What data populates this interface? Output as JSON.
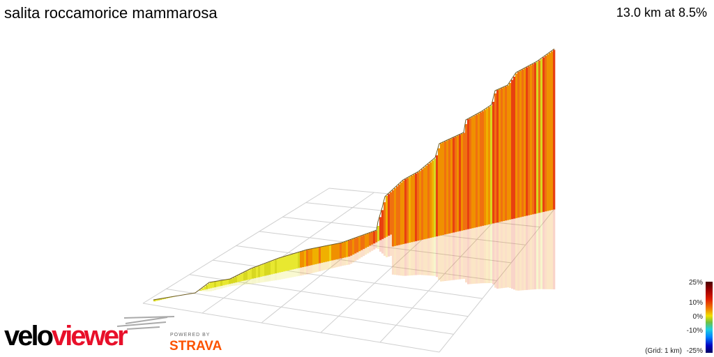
{
  "header": {
    "title": "salita roccamorice mammarosa",
    "summary": "13.0 km at 8.5%"
  },
  "chart_data": {
    "type": "3d-elevation-profile",
    "title": "salita roccamorice mammarosa",
    "distance_km": 13.0,
    "average_gradient_pct": 8.5,
    "grid": "on",
    "colorbar": {
      "ticks": [
        "25%",
        "10%",
        "0%",
        "-10%",
        "-25%"
      ],
      "range_pct": [
        -25,
        25
      ],
      "placement": "bottom-right"
    },
    "grid_note": "(Grid: 1 km)"
  },
  "branding": {
    "logo_part1": "velo",
    "logo_part2": "viewer",
    "powered_by": "POWERED BY",
    "strava": "STRAVA"
  },
  "colors": {
    "logo_black": "#000000",
    "logo_red": "#e8102a",
    "strava": "#fc5200"
  }
}
